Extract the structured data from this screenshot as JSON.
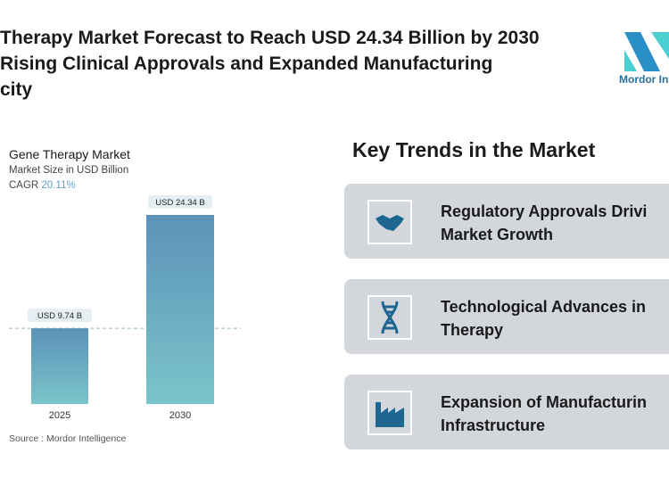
{
  "header": {
    "title_lines": [
      "Therapy Market Forecast to Reach USD 24.34 Billion by 2030",
      "Rising Clinical Approvals and Expanded Manufacturing",
      "city"
    ],
    "logo_text": "Mordor Inte"
  },
  "chart_data": {
    "type": "bar",
    "title": "Gene Therapy Market",
    "subtitle": "Market Size in USD Billion",
    "cagr_label": "CAGR",
    "cagr_value": "20.11%",
    "categories": [
      "2025",
      "2030"
    ],
    "values": [
      9.74,
      24.34
    ],
    "data_labels": [
      "USD 9.74 B",
      "USD 24.34 B"
    ],
    "ylim": [
      0,
      24.34
    ],
    "xlabel": "",
    "ylabel": "",
    "source": "Source :  Mordor Intelligence"
  },
  "trends": {
    "heading": "Key Trends in the Market",
    "items": [
      {
        "icon": "handshake-icon",
        "lines": [
          "Regulatory Approvals Drivi",
          "Market Growth"
        ]
      },
      {
        "icon": "dna-icon",
        "lines": [
          "Technological Advances in",
          "Therapy"
        ]
      },
      {
        "icon": "factory-icon",
        "lines": [
          "Expansion of Manufacturin",
          "Infrastructure"
        ]
      }
    ]
  },
  "colors": {
    "bar_top": "#5b93b8",
    "bar_bottom": "#7cc4cb",
    "icon": "#1d6690"
  }
}
